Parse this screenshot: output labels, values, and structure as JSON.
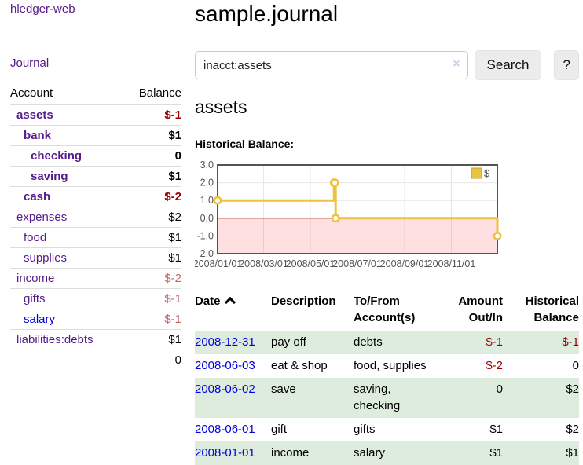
{
  "app": {
    "title": "hledger-web"
  },
  "colors": {
    "link_purple": "#551a8b",
    "link_blue": "#0000e0",
    "negative_strong": "#990000",
    "negative_faded": "#c06868",
    "row_stripe_green": "#ddecdd"
  },
  "sidebar": {
    "nav_journal": "Journal",
    "accounts_table": {
      "headers": {
        "account": "Account",
        "balance": "Balance"
      },
      "rows": [
        {
          "account": "assets",
          "indent": 1,
          "bold": true,
          "link_color": "purple",
          "balance": "$-1",
          "tone": "neg-strong"
        },
        {
          "account": "bank",
          "indent": 2,
          "bold": true,
          "link_color": "purple",
          "balance": "$1",
          "tone": ""
        },
        {
          "account": "checking",
          "indent": 3,
          "bold": true,
          "link_color": "purple",
          "balance": "0",
          "tone": ""
        },
        {
          "account": "saving",
          "indent": 3,
          "bold": true,
          "link_color": "purple",
          "balance": "$1",
          "tone": ""
        },
        {
          "account": "cash",
          "indent": 2,
          "bold": true,
          "link_color": "purple",
          "balance": "$-2",
          "tone": "neg-strong"
        },
        {
          "account": "expenses",
          "indent": 1,
          "bold": false,
          "link_color": "purple",
          "balance": "$2",
          "tone": ""
        },
        {
          "account": "food",
          "indent": 2,
          "bold": false,
          "link_color": "purple",
          "balance": "$1",
          "tone": ""
        },
        {
          "account": "supplies",
          "indent": 2,
          "bold": false,
          "link_color": "purple",
          "balance": "$1",
          "tone": ""
        },
        {
          "account": "income",
          "indent": 1,
          "bold": false,
          "link_color": "purple",
          "balance": "$-2",
          "tone": "neg-faded"
        },
        {
          "account": "gifts",
          "indent": 2,
          "bold": false,
          "link_color": "purple",
          "balance": "$-1",
          "tone": "neg-faded"
        },
        {
          "account": "salary",
          "indent": 2,
          "bold": false,
          "link_color": "blue",
          "balance": "$-1",
          "tone": "neg-faded"
        },
        {
          "account": "liabilities:debts",
          "indent": 1,
          "bold": false,
          "link_color": "purple",
          "balance": "$1",
          "tone": ""
        }
      ],
      "total": "0"
    }
  },
  "main": {
    "title": "sample.journal",
    "search": {
      "value": "inacct:assets",
      "clear_label": "×",
      "button_label": "Search",
      "help_label": "?"
    },
    "account_heading": "assets",
    "chart_label": "Historical Balance:"
  },
  "chart_data": {
    "type": "line",
    "title": "Historical Balance",
    "x_range": [
      "2008-01-01",
      "2008-12-31"
    ],
    "ylim": [
      -2,
      3
    ],
    "y_ticks": [
      3.0,
      2.0,
      1.0,
      0.0,
      -1.0,
      -2.0
    ],
    "x_ticks": [
      "2008/01/01",
      "2008/03/01",
      "2008/05/01",
      "2008/07/01",
      "2008/09/01",
      "2008/11/01"
    ],
    "grid": true,
    "legend": {
      "label": "$",
      "position": "top-right"
    },
    "series": [
      {
        "name": "$",
        "color": "#edc240",
        "steps": true,
        "points": [
          {
            "date": "2008-01-01",
            "value": 1
          },
          {
            "date": "2008-06-01",
            "value": 2
          },
          {
            "date": "2008-06-02",
            "value": 2
          },
          {
            "date": "2008-06-03",
            "value": 0
          },
          {
            "date": "2008-12-31",
            "value": -1
          }
        ]
      }
    ],
    "negative_region_fill": "rgba(255,0,0,0.12)",
    "zero_line_color": "#8b0000",
    "border_color": "#545454",
    "gridline_color": "#e6e6e6",
    "tick_label_color": "#545454"
  },
  "register": {
    "headers": {
      "date": "Date",
      "description": "Description",
      "accounts": "To/From Account(s)",
      "amount": "Amount Out/In",
      "balance": "Historical Balance"
    },
    "sort": "date-ascending",
    "rows": [
      {
        "date": "2008-12-31",
        "description": "pay off",
        "accounts": "debts",
        "amount": "$-1",
        "amount_tone": "neg",
        "balance": "$-1",
        "balance_tone": "neg"
      },
      {
        "date": "2008-06-03",
        "description": "eat & shop",
        "accounts": "food, supplies",
        "amount": "$-2",
        "amount_tone": "neg",
        "balance": "0",
        "balance_tone": ""
      },
      {
        "date": "2008-06-02",
        "description": "save",
        "accounts": "saving, checking",
        "amount": "0",
        "amount_tone": "",
        "balance": "$2",
        "balance_tone": ""
      },
      {
        "date": "2008-06-01",
        "description": "gift",
        "accounts": "gifts",
        "amount": "$1",
        "amount_tone": "",
        "balance": "$2",
        "balance_tone": ""
      },
      {
        "date": "2008-01-01",
        "description": "income",
        "accounts": "salary",
        "amount": "$1",
        "amount_tone": "",
        "balance": "$1",
        "balance_tone": ""
      }
    ]
  }
}
